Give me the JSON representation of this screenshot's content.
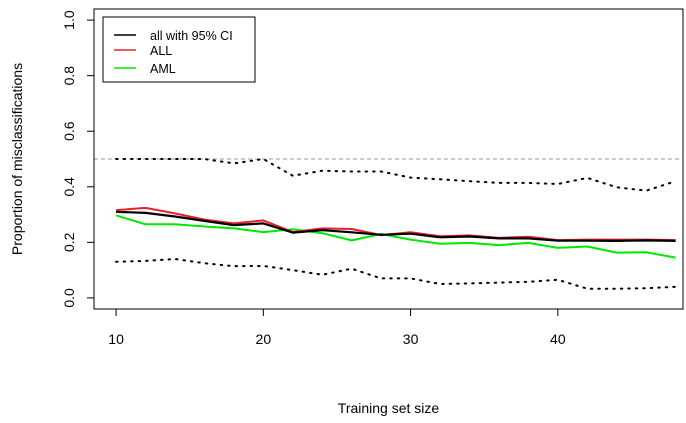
{
  "chart_data": {
    "type": "line",
    "title": "",
    "xlabel": "Training set size",
    "ylabel": "Proportion of misclassifications",
    "xlim": [
      8.5,
      48.5
    ],
    "ylim": [
      -0.04,
      1.04
    ],
    "x_ticks": [
      10,
      20,
      30,
      40
    ],
    "y_ticks": [
      "0.0",
      "0.2",
      "0.4",
      "0.6",
      "0.8",
      "1.0"
    ],
    "x": [
      10,
      12,
      14,
      16,
      18,
      20,
      22,
      24,
      26,
      28,
      30,
      32,
      34,
      36,
      38,
      40,
      42,
      44,
      46,
      48
    ],
    "reference_line": {
      "y": 0.5,
      "color": "#999999",
      "style": "dashed"
    },
    "series": [
      {
        "name": "all with 95% CI",
        "color": "#000000",
        "values": [
          0.31,
          0.306,
          0.293,
          0.277,
          0.262,
          0.268,
          0.235,
          0.244,
          0.236,
          0.227,
          0.231,
          0.218,
          0.221,
          0.214,
          0.214,
          0.206,
          0.206,
          0.205,
          0.207,
          0.205
        ]
      },
      {
        "name": "ALL",
        "color": "#e8202a",
        "values": [
          0.316,
          0.324,
          0.304,
          0.282,
          0.268,
          0.279,
          0.237,
          0.25,
          0.248,
          0.226,
          0.236,
          0.222,
          0.225,
          0.216,
          0.22,
          0.208,
          0.21,
          0.21,
          0.21,
          0.208
        ]
      },
      {
        "name": "AML",
        "color": "#00e800",
        "values": [
          0.297,
          0.265,
          0.265,
          0.257,
          0.25,
          0.237,
          0.247,
          0.233,
          0.207,
          0.23,
          0.21,
          0.195,
          0.198,
          0.19,
          0.198,
          0.18,
          0.185,
          0.163,
          0.164,
          0.145
        ]
      }
    ],
    "ci_lower": {
      "color": "#000000",
      "style": "dotted",
      "values": [
        0.13,
        0.133,
        0.14,
        0.125,
        0.114,
        0.115,
        0.1,
        0.083,
        0.105,
        0.07,
        0.07,
        0.05,
        0.052,
        0.055,
        0.058,
        0.065,
        0.033,
        0.033,
        0.035,
        0.04
      ]
    },
    "ci_upper": {
      "color": "#000000",
      "style": "dotted",
      "values": [
        0.5,
        0.5,
        0.5,
        0.5,
        0.484,
        0.5,
        0.44,
        0.458,
        0.455,
        0.455,
        0.433,
        0.427,
        0.42,
        0.414,
        0.414,
        0.41,
        0.432,
        0.398,
        0.386,
        0.42
      ]
    },
    "legend_position": "top-left",
    "grid": false
  }
}
